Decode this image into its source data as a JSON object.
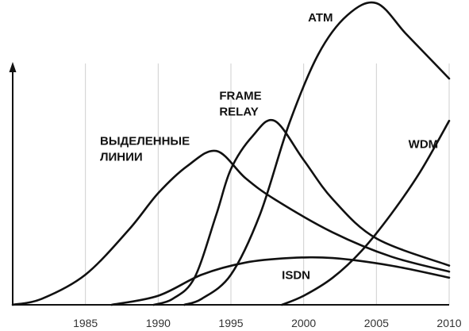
{
  "chart_data": {
    "type": "line",
    "title": "",
    "xlabel": "",
    "ylabel": "",
    "xlim": [
      1980,
      2010
    ],
    "ylim": [
      0,
      100
    ],
    "x_ticks": [
      1985,
      1990,
      1995,
      2000,
      2005,
      2010
    ],
    "x_tick_labels": [
      "1985",
      "1990",
      "1995",
      "2000",
      "2005",
      "2010"
    ],
    "grid": "vertical",
    "series": [
      {
        "name": "ВЫДЕЛЕННЫЕ ЛИНИИ",
        "label_lines": [
          "ВЫДЕЛЕННЫЕ",
          "ЛИНИИ"
        ],
        "label_anchor": [
          1986,
          53
        ],
        "points": [
          [
            1980,
            0
          ],
          [
            1982,
            2
          ],
          [
            1985,
            10
          ],
          [
            1988,
            25
          ],
          [
            1990,
            37
          ],
          [
            1992,
            46
          ],
          [
            1994,
            51
          ],
          [
            1996,
            42
          ],
          [
            1998,
            35
          ],
          [
            2002,
            24
          ],
          [
            2006,
            16
          ],
          [
            2010,
            11
          ]
        ]
      },
      {
        "name": "FRAME RELAY",
        "label_lines": [
          "FRAME",
          "RELAY"
        ],
        "label_anchor": [
          1994.2,
          68
        ],
        "points": [
          [
            1989.7,
            0
          ],
          [
            1991,
            2
          ],
          [
            1992.5,
            9
          ],
          [
            1994,
            30
          ],
          [
            1995,
            45
          ],
          [
            1996.5,
            56
          ],
          [
            1998,
            61
          ],
          [
            2000,
            48
          ],
          [
            2002,
            35
          ],
          [
            2005,
            22
          ],
          [
            2010,
            13
          ]
        ]
      },
      {
        "name": "ATM",
        "label_lines": [
          "ATM"
        ],
        "label_anchor": [
          2000.3,
          94
        ],
        "points": [
          [
            1991.8,
            0
          ],
          [
            1993,
            2
          ],
          [
            1995,
            10
          ],
          [
            1997,
            30
          ],
          [
            1999,
            60
          ],
          [
            2001,
            83
          ],
          [
            2003,
            96
          ],
          [
            2005,
            100
          ],
          [
            2007,
            90
          ],
          [
            2009,
            80
          ],
          [
            2010,
            75
          ]
        ]
      },
      {
        "name": "ISDN",
        "label_lines": [
          "ISDN"
        ],
        "label_anchor": [
          1998.5,
          8.5
        ],
        "points": [
          [
            1986.8,
            0
          ],
          [
            1990,
            3
          ],
          [
            1993,
            10
          ],
          [
            1996,
            14
          ],
          [
            1999,
            15.5
          ],
          [
            2002,
            15.5
          ],
          [
            2006,
            13
          ],
          [
            2010,
            9
          ]
        ]
      },
      {
        "name": "WDM",
        "label_lines": [
          "WDM"
        ],
        "label_anchor": [
          2007.2,
          52
        ],
        "points": [
          [
            1998.5,
            0
          ],
          [
            2000,
            3
          ],
          [
            2002,
            9
          ],
          [
            2004,
            18
          ],
          [
            2006,
            30
          ],
          [
            2008,
            44
          ],
          [
            2010,
            61
          ]
        ]
      }
    ]
  }
}
